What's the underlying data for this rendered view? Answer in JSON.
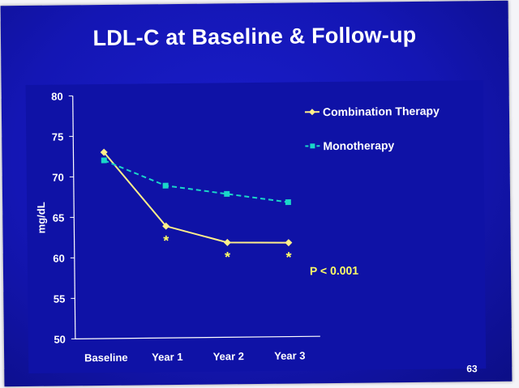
{
  "slide": {
    "title": "LDL-C at Baseline & Follow-up",
    "page_number": "63"
  },
  "colors": {
    "background": "#1416b4",
    "combination": "#ffef8a",
    "monotherapy": "#1ad6c8",
    "text": "#ffffff",
    "annotation": "#ffff66"
  },
  "chart_data": {
    "type": "line",
    "title": "LDL-C at Baseline & Follow-up",
    "xlabel": "",
    "ylabel": "mg/dL",
    "categories": [
      "Baseline",
      "Year 1",
      "Year 2",
      "Year 3"
    ],
    "ylim": [
      50,
      80
    ],
    "yticks": [
      50,
      55,
      60,
      65,
      70,
      75,
      80
    ],
    "grid": false,
    "legend_position": "top-right",
    "series": [
      {
        "name": "Combination Therapy",
        "values": [
          73,
          63.8,
          61.7,
          61.6
        ],
        "style": "solid",
        "marker": "diamond"
      },
      {
        "name": "Monotherapy",
        "values": [
          72,
          68.8,
          67.7,
          66.6
        ],
        "style": "dashed",
        "marker": "square"
      }
    ],
    "significance_markers": [
      {
        "category": "Year 1",
        "label": "*"
      },
      {
        "category": "Year 2",
        "label": "*"
      },
      {
        "category": "Year 3",
        "label": "*"
      }
    ],
    "annotation": "P < 0.001"
  }
}
